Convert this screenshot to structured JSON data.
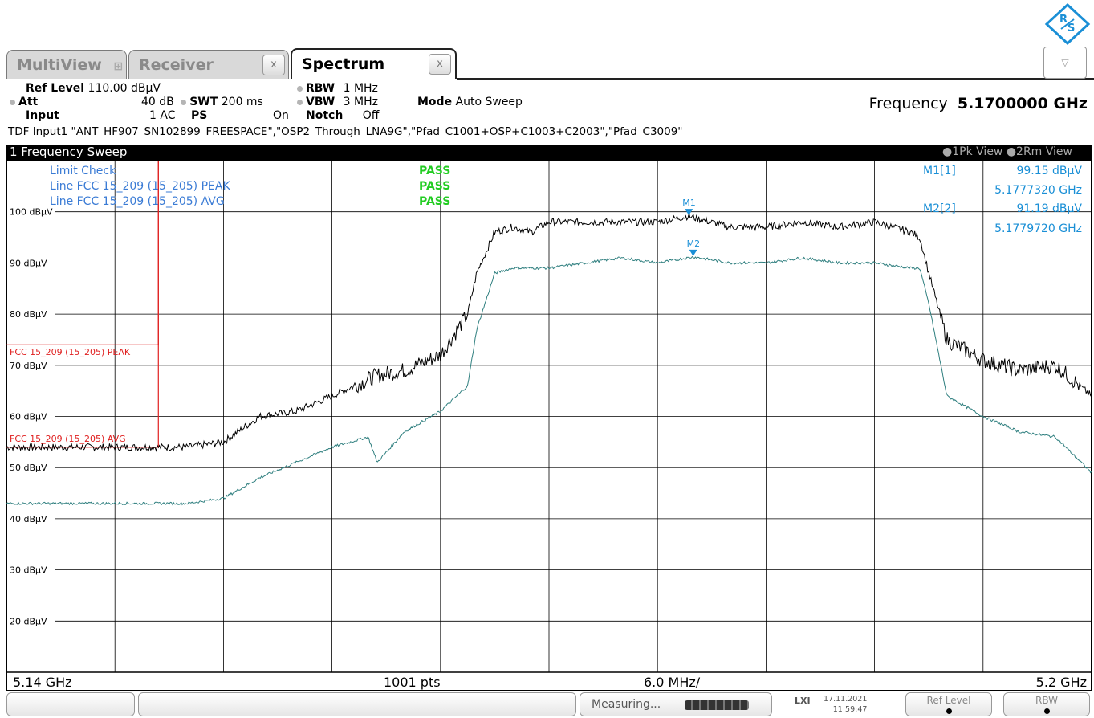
{
  "tabs": [
    {
      "label": "MultiView",
      "state": "inactive"
    },
    {
      "label": "Receiver",
      "state": "inactive"
    },
    {
      "label": "Spectrum",
      "state": "active"
    }
  ],
  "tab_close_glyph": "x",
  "dropdown_icon": "chevron-down-icon",
  "settings": {
    "ref_level_label": "Ref Level",
    "ref_level_value": "110.00 dBµV",
    "att_label": "Att",
    "att_value": "40 dB",
    "swt_label": "SWT",
    "swt_value": "200 ms",
    "rbw_label": "RBW",
    "rbw_value": "1 MHz",
    "vbw_label": "VBW",
    "vbw_value": "3 MHz",
    "mode_label": "Mode",
    "mode_value": "Auto Sweep",
    "input_label": "Input",
    "input_value": "1 AC",
    "ps_label": "PS",
    "ps_value": "On",
    "notch_label": "Notch",
    "notch_value": "Off",
    "frequency_label": "Frequency",
    "frequency_value": "5.1700000 GHz",
    "tdf_line": "TDF Input1 \"ANT_HF907_SN102899_FREESPACE\",\"OSP2_Through_LNA9G\",\"Pfad_C1001+OSP+C1003+C2003\",\"Pfad_C3009\""
  },
  "diagram": {
    "title": "1 Frequency Sweep",
    "trace_views": "●1Pk View ●2Rm View",
    "limit_check_label": "Limit Check",
    "limit_check_result": "PASS",
    "limit_lines": [
      {
        "label": "Line FCC 15_209 (15_205) PEAK",
        "result": "PASS"
      },
      {
        "label": "Line FCC 15_209 (15_205) AVG",
        "result": "PASS"
      }
    ],
    "limit_line_labels": [
      "FCC 15_209 (15_205) PEAK",
      "FCC 15_209 (15_205) AVG"
    ],
    "markers_table": [
      {
        "name": "M1[1]",
        "level": "99.15 dBµV",
        "freq": "5.1777320 GHz"
      },
      {
        "name": "M2[2]",
        "level": "91.19 dBµV",
        "freq": "5.1779720 GHz"
      }
    ],
    "marker_labels": [
      "M1",
      "M2"
    ],
    "footer": {
      "start": "5.14 GHz",
      "points": "1001 pts",
      "span_per_div": "6.0 MHz/",
      "stop": "5.2 GHz"
    }
  },
  "chart_data": {
    "type": "line",
    "xlabel": "",
    "ylabel": "",
    "x_range_ghz": [
      5.14,
      5.2
    ],
    "ylim": [
      10,
      110
    ],
    "y_ticks": [
      100,
      90,
      80,
      70,
      60,
      50,
      40,
      30,
      20
    ],
    "y_tick_labels": [
      "100 dBµV",
      "90 dBµV",
      "80 dBµV",
      "70 dBµV",
      "60 dBµV",
      "50 dBµV",
      "40 dBµV",
      "30 dBµV",
      "20 dBµV"
    ],
    "grid": true,
    "series": [
      {
        "name": "1Pk View",
        "color": "#000000",
        "x": [
          5.14,
          5.146,
          5.15,
          5.152,
          5.154,
          5.156,
          5.158,
          5.1605,
          5.162,
          5.164,
          5.1655,
          5.166,
          5.167,
          5.168,
          5.169,
          5.17,
          5.172,
          5.174,
          5.176,
          5.1777,
          5.18,
          5.182,
          5.184,
          5.186,
          5.188,
          5.19,
          5.1905,
          5.191,
          5.192,
          5.194,
          5.196,
          5.198,
          5.2
        ],
        "y": [
          54,
          54,
          54,
          55,
          60,
          61,
          64,
          68,
          69,
          72,
          80,
          88,
          96,
          97,
          96,
          98,
          98,
          98,
          98,
          99.15,
          97,
          97,
          98,
          97,
          98,
          96,
          95,
          88,
          75,
          71,
          69,
          70,
          64
        ]
      },
      {
        "name": "2Rm View",
        "color": "#2f7f7f",
        "x": [
          5.14,
          5.146,
          5.15,
          5.152,
          5.154,
          5.156,
          5.158,
          5.16,
          5.1605,
          5.162,
          5.164,
          5.1655,
          5.166,
          5.167,
          5.168,
          5.169,
          5.17,
          5.172,
          5.174,
          5.176,
          5.178,
          5.18,
          5.182,
          5.184,
          5.186,
          5.188,
          5.19,
          5.1905,
          5.191,
          5.192,
          5.194,
          5.196,
          5.198,
          5.2
        ],
        "y": [
          43,
          43,
          43,
          44,
          48,
          51,
          54,
          56,
          51,
          57,
          61,
          66,
          77,
          88,
          89,
          89,
          89,
          90,
          91,
          90,
          91.19,
          90,
          90,
          91,
          90,
          90,
          89,
          89,
          82,
          64,
          60,
          57,
          56,
          49
        ]
      }
    ],
    "limit_lines": [
      {
        "name": "FCC 15_209 (15_205) PEAK",
        "color": "#e02020",
        "x": [
          5.14,
          5.1484,
          5.1484
        ],
        "y": [
          74,
          74,
          110
        ]
      },
      {
        "name": "FCC 15_209 (15_205) AVG",
        "color": "#e02020",
        "x": [
          5.14,
          5.1484,
          5.1484
        ],
        "y": [
          54,
          54,
          110
        ]
      }
    ],
    "markers": [
      {
        "name": "M1",
        "trace": 1,
        "x_ghz": 5.177732,
        "y": 99.15
      },
      {
        "name": "M2",
        "trace": 2,
        "x_ghz": 5.177972,
        "y": 91.19
      }
    ]
  },
  "status_bar": {
    "measuring": "Measuring...",
    "date": "17.11.2021",
    "time": "11:59:47",
    "soft_buttons": [
      "Ref Level",
      "RBW"
    ]
  }
}
